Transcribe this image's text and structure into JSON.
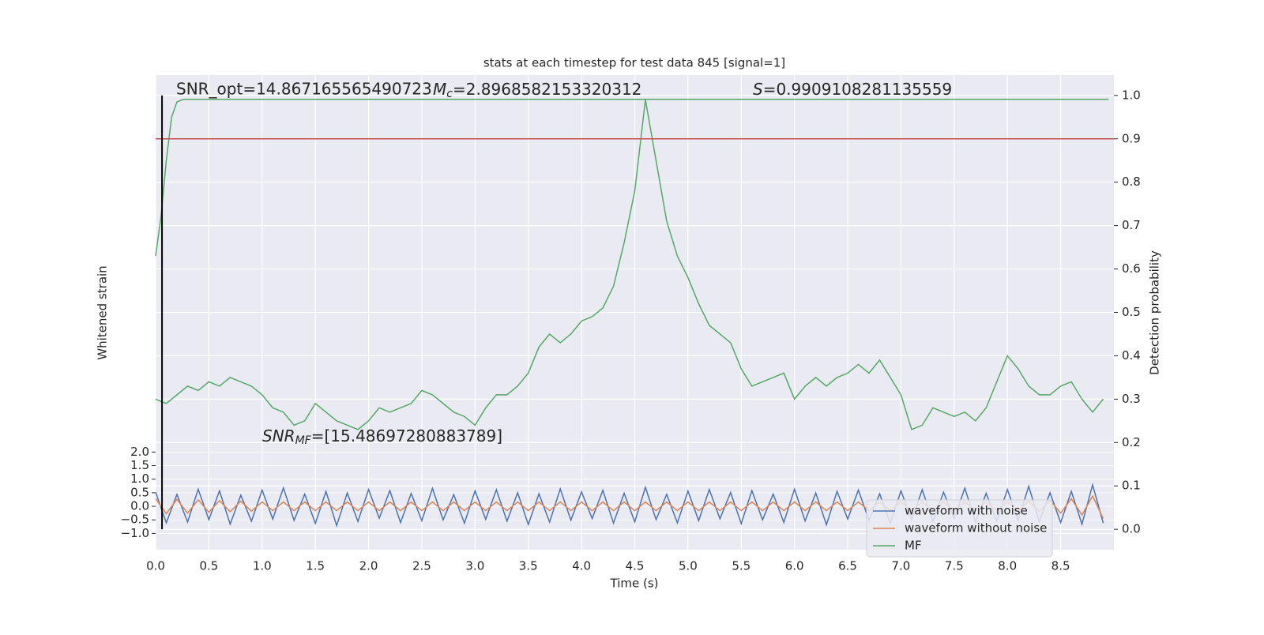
{
  "chart_data": {
    "type": "line",
    "title": "stats at each timestep for test data 845 [signal=1]",
    "xlabel": "Time (s)",
    "ylabel": "Whitened strain",
    "y2label": "Detection probability",
    "annotations": [
      {
        "text": "SNR_opt=14.867165565490723"
      },
      {
        "symbol": "M",
        "subscript": "c",
        "text": "=2.8968582153320312"
      },
      {
        "symbol": "S",
        "text": "=0.9909108281135559"
      },
      {
        "symbol": "SNR",
        "subscript": "MF",
        "text": "=[15.48697280883789]"
      }
    ],
    "xlim": [
      0,
      9
    ],
    "xticks": [
      {
        "value": 0,
        "label": "0.0"
      },
      0.5,
      {
        "value": 1,
        "label": "1.0"
      },
      1.5,
      {
        "value": 2,
        "label": "2.0"
      },
      2.5,
      {
        "value": 3,
        "label": "3.0"
      },
      3.5,
      {
        "value": 4,
        "label": "4.0"
      },
      4.5,
      {
        "value": 5,
        "label": "5.0"
      },
      5.5,
      {
        "value": 6,
        "label": "6.0"
      },
      6.5,
      {
        "value": 7,
        "label": "7.0"
      },
      7.5,
      {
        "value": 8,
        "label": "8.0"
      },
      8.5
    ],
    "ylim": [
      -1.6,
      15.9
    ],
    "yticks": [
      {
        "value": -1,
        "label": "−1.0"
      },
      {
        "value": -0.5,
        "label": "−0.5"
      },
      {
        "value": 0,
        "label": "0.0"
      },
      0.5,
      {
        "value": 1,
        "label": "1.0"
      },
      1.5,
      {
        "value": 2,
        "label": "2.0"
      }
    ],
    "y2lim": [
      -0.047,
      1.047
    ],
    "y2ticks": [
      {
        "value": 0,
        "label": "0.0"
      },
      0.1,
      0.2,
      0.3,
      0.4,
      0.5,
      0.6,
      0.7,
      0.8,
      0.9,
      {
        "value": 1,
        "label": "1.0"
      }
    ],
    "grid": true,
    "legend": "lower right",
    "hline": {
      "y": 0.9,
      "color": "#c44e52",
      "axis": "y2"
    },
    "vline": {
      "x": 0.06,
      "ymin": 0,
      "ymax": 1,
      "color": "#000000",
      "axis": "y2"
    },
    "x": [
      0,
      0.1,
      0.2,
      0.3,
      0.4,
      0.5,
      0.6,
      0.7,
      0.8,
      0.9,
      1,
      1.1,
      1.2,
      1.3,
      1.4,
      1.5,
      1.6,
      1.7,
      1.8,
      1.9,
      2,
      2.1,
      2.2,
      2.3,
      2.4,
      2.5,
      2.6,
      2.7,
      2.8,
      2.9,
      3,
      3.1,
      3.2,
      3.3,
      3.4,
      3.5,
      3.6,
      3.7,
      3.8,
      3.9,
      4,
      4.1,
      4.2,
      4.3,
      4.4,
      4.5,
      4.6,
      4.7,
      4.8,
      4.9,
      5,
      5.1,
      5.2,
      5.3,
      5.4,
      5.5,
      5.6,
      5.7,
      5.8,
      5.9,
      6,
      6.1,
      6.2,
      6.3,
      6.4,
      6.5,
      6.6,
      6.7,
      6.8,
      6.9,
      7,
      7.1,
      7.2,
      7.3,
      7.4,
      7.5,
      7.6,
      7.7,
      7.8,
      7.9,
      8,
      8.1,
      8.2,
      8.3,
      8.4,
      8.5,
      8.6,
      8.7,
      8.8,
      8.9
    ],
    "series": [
      {
        "name": "waveform with noise",
        "color": "#4c72b0",
        "values": [
          0.52,
          -0.61,
          0.44,
          -0.58,
          0.63,
          -0.49,
          0.57,
          -0.66,
          0.41,
          -0.55,
          0.6,
          -0.47,
          0.68,
          -0.52,
          0.45,
          -0.63,
          0.55,
          -0.71,
          0.49,
          -0.56,
          0.62,
          -0.44,
          0.58,
          -0.6,
          0.47,
          -0.53,
          0.66,
          -0.5,
          0.43,
          -0.62,
          0.57,
          -0.48,
          0.61,
          -0.55,
          0.5,
          -0.67,
          0.46,
          -0.58,
          0.64,
          -0.51,
          0.53,
          -0.45,
          0.59,
          -0.62,
          0.48,
          -0.57,
          0.7,
          -0.49,
          0.44,
          -0.61,
          0.56,
          -0.53,
          0.62,
          -0.46,
          0.51,
          -0.64,
          0.58,
          -0.5,
          0.45,
          -0.59,
          0.63,
          -0.54,
          0.49,
          -0.68,
          0.55,
          -0.47,
          0.6,
          -0.52,
          0.46,
          -0.63,
          0.57,
          -0.49,
          0.61,
          -0.56,
          0.52,
          -0.45,
          0.67,
          -0.58,
          0.48,
          -0.54,
          0.62,
          -0.51,
          0.74,
          -0.57,
          0.5,
          -0.6,
          0.55,
          -0.66,
          0.79,
          -0.62
        ]
      },
      {
        "name": "waveform without noise",
        "color": "#dd8452",
        "values": [
          0.28,
          -0.27,
          0.26,
          -0.25,
          0.24,
          -0.22,
          0.21,
          -0.2,
          0.19,
          -0.18,
          0.16,
          -0.16,
          0.16,
          -0.16,
          0.16,
          -0.16,
          0.16,
          -0.16,
          0.16,
          -0.16,
          0.16,
          -0.16,
          0.16,
          -0.16,
          0.16,
          -0.16,
          0.16,
          -0.16,
          0.16,
          -0.16,
          0.16,
          -0.16,
          0.16,
          -0.16,
          0.16,
          -0.16,
          0.16,
          -0.16,
          0.16,
          -0.16,
          0.16,
          -0.16,
          0.16,
          -0.16,
          0.16,
          -0.16,
          0.16,
          -0.16,
          0.16,
          -0.16,
          0.16,
          -0.16,
          0.16,
          -0.16,
          0.16,
          -0.16,
          0.16,
          -0.16,
          0.16,
          -0.16,
          0.16,
          -0.16,
          0.16,
          -0.16,
          0.16,
          -0.16,
          0.16,
          -0.16,
          0.16,
          -0.16,
          0.16,
          -0.16,
          0.16,
          -0.16,
          0.16,
          -0.16,
          0.16,
          -0.16,
          0.16,
          -0.16,
          0.17,
          -0.18,
          0.19,
          -0.2,
          0.22,
          -0.25,
          0.28,
          -0.32,
          0.38,
          -0.45
        ]
      },
      {
        "name": "MF",
        "color": "#55a868",
        "axis": "y2",
        "values": [
          0.3,
          0.29,
          0.31,
          0.33,
          0.32,
          0.34,
          0.33,
          0.35,
          0.34,
          0.33,
          0.31,
          0.28,
          0.27,
          0.24,
          0.25,
          0.29,
          0.27,
          0.25,
          0.24,
          0.23,
          0.25,
          0.28,
          0.27,
          0.28,
          0.29,
          0.32,
          0.31,
          0.29,
          0.27,
          0.26,
          0.24,
          0.28,
          0.31,
          0.31,
          0.33,
          0.36,
          0.42,
          0.45,
          0.43,
          0.45,
          0.48,
          0.49,
          0.51,
          0.56,
          0.66,
          0.78,
          0.99,
          0.85,
          0.71,
          0.63,
          0.58,
          0.52,
          0.47,
          0.45,
          0.43,
          0.37,
          0.33,
          0.34,
          0.35,
          0.36,
          0.3,
          0.33,
          0.35,
          0.33,
          0.35,
          0.36,
          0.38,
          0.36,
          0.39,
          0.35,
          0.31,
          0.23,
          0.24,
          0.28,
          0.27,
          0.26,
          0.27,
          0.25,
          0.28,
          0.34,
          0.4,
          0.37,
          0.33,
          0.31,
          0.31,
          0.33,
          0.34,
          0.3,
          0.27,
          0.3
        ]
      },
      {
        "color": "#55a868",
        "axis": "y2",
        "x": [
          0,
          0.05,
          0.1,
          0.15,
          0.2,
          0.25,
          0.3,
          8.95
        ],
        "values": [
          0.63,
          0.72,
          0.85,
          0.95,
          0.985,
          0.99,
          0.991,
          0.991
        ]
      }
    ]
  }
}
